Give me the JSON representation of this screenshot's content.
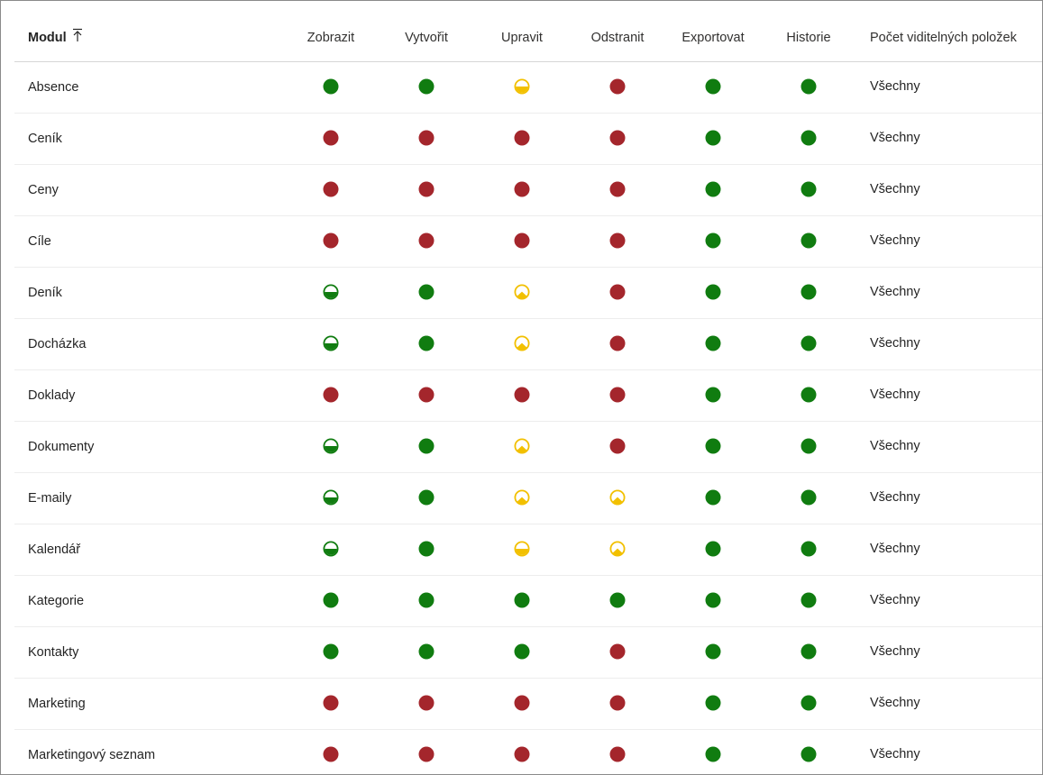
{
  "colors": {
    "full": "#107c10",
    "none": "#a4262c",
    "half_green": "#107c10",
    "half_yellow": "#f2c000",
    "user_yellow": "#f2c000"
  },
  "icons": {
    "full": "full-access-icon",
    "none": "no-access-icon",
    "half_green": "partial-access-green-icon",
    "half_yellow": "partial-access-yellow-icon",
    "user_yellow": "own-records-access-icon"
  },
  "header": {
    "module": "Modul",
    "columns": [
      "Zobrazit",
      "Vytvořit",
      "Upravit",
      "Odstranit",
      "Exportovat",
      "Historie"
    ],
    "count": "Počet viditelných položek"
  },
  "rows": [
    {
      "name": "Absence",
      "perms": [
        "full",
        "full",
        "half_yellow",
        "none",
        "full",
        "full"
      ],
      "count": "Všechny"
    },
    {
      "name": "Ceník",
      "perms": [
        "none",
        "none",
        "none",
        "none",
        "full",
        "full"
      ],
      "count": "Všechny"
    },
    {
      "name": "Ceny",
      "perms": [
        "none",
        "none",
        "none",
        "none",
        "full",
        "full"
      ],
      "count": "Všechny"
    },
    {
      "name": "Cíle",
      "perms": [
        "none",
        "none",
        "none",
        "none",
        "full",
        "full"
      ],
      "count": "Všechny"
    },
    {
      "name": "Deník",
      "perms": [
        "half_green",
        "full",
        "user_yellow",
        "none",
        "full",
        "full"
      ],
      "count": "Všechny"
    },
    {
      "name": "Docházka",
      "perms": [
        "half_green",
        "full",
        "user_yellow",
        "none",
        "full",
        "full"
      ],
      "count": "Všechny"
    },
    {
      "name": "Doklady",
      "perms": [
        "none",
        "none",
        "none",
        "none",
        "full",
        "full"
      ],
      "count": "Všechny"
    },
    {
      "name": "Dokumenty",
      "perms": [
        "half_green",
        "full",
        "user_yellow",
        "none",
        "full",
        "full"
      ],
      "count": "Všechny"
    },
    {
      "name": "E-maily",
      "perms": [
        "half_green",
        "full",
        "user_yellow",
        "user_yellow",
        "full",
        "full"
      ],
      "count": "Všechny"
    },
    {
      "name": "Kalendář",
      "perms": [
        "half_green",
        "full",
        "half_yellow",
        "user_yellow",
        "full",
        "full"
      ],
      "count": "Všechny"
    },
    {
      "name": "Kategorie",
      "perms": [
        "full",
        "full",
        "full",
        "full",
        "full",
        "full"
      ],
      "count": "Všechny"
    },
    {
      "name": "Kontakty",
      "perms": [
        "full",
        "full",
        "full",
        "none",
        "full",
        "full"
      ],
      "count": "Všechny"
    },
    {
      "name": "Marketing",
      "perms": [
        "none",
        "none",
        "none",
        "none",
        "full",
        "full"
      ],
      "count": "Všechny"
    },
    {
      "name": "Marketingový seznam",
      "perms": [
        "none",
        "none",
        "none",
        "none",
        "full",
        "full"
      ],
      "count": "Všechny"
    }
  ]
}
